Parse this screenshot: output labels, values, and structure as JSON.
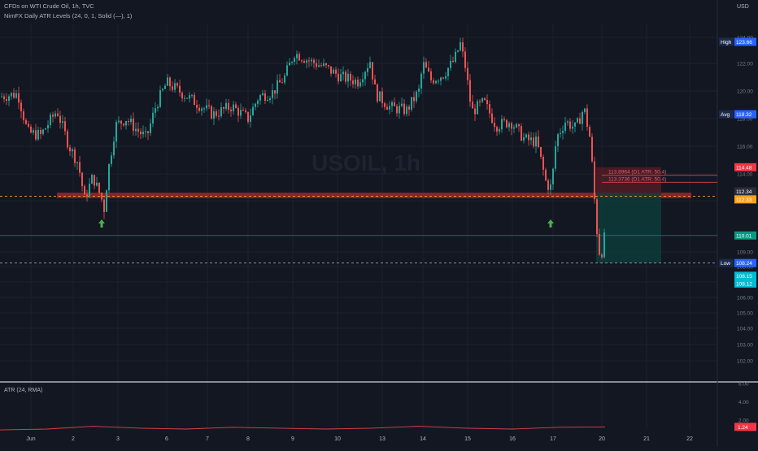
{
  "header": {
    "title": "CFDs on WTI Crude Oil, 1h, TVC",
    "indicator": "NimFX Daily ATR Levels (24, 0, 1, Solid (—), 1)",
    "currency": "USD",
    "watermark": "USOIL, 1h"
  },
  "subpane": {
    "label": "ATR (24, RMA)"
  },
  "chart_data": {
    "type": "candlestick",
    "title": "CFDs on WTI Crude Oil, 1h, TVC",
    "ylim": [
      101,
      125
    ],
    "y_ticks": [
      102,
      103,
      104,
      105,
      106,
      107,
      108,
      109,
      110,
      112,
      114,
      116,
      118,
      120,
      122,
      124
    ],
    "x_ticks": [
      "Jun",
      "2",
      "3",
      "6",
      "7",
      "8",
      "9",
      "10",
      "13",
      "14",
      "15",
      "16",
      "17",
      "20",
      "21",
      "22"
    ],
    "price_path": [
      {
        "x": 0,
        "y": 119.6
      },
      {
        "x": 22,
        "y": 119.8
      },
      {
        "x": 34,
        "y": 117.0
      },
      {
        "x": 50,
        "y": 116.8
      },
      {
        "x": 70,
        "y": 118.6
      },
      {
        "x": 85,
        "y": 116.0
      },
      {
        "x": 96,
        "y": 114.8
      },
      {
        "x": 104,
        "y": 112.1
      },
      {
        "x": 114,
        "y": 113.8
      },
      {
        "x": 122,
        "y": 112.6
      },
      {
        "x": 128,
        "y": 111.6
      },
      {
        "x": 134,
        "y": 114.6
      },
      {
        "x": 142,
        "y": 117.5
      },
      {
        "x": 155,
        "y": 118.0
      },
      {
        "x": 168,
        "y": 117.2
      },
      {
        "x": 180,
        "y": 116.6
      },
      {
        "x": 192,
        "y": 119.0
      },
      {
        "x": 205,
        "y": 120.6
      },
      {
        "x": 220,
        "y": 120.0
      },
      {
        "x": 240,
        "y": 119.2
      },
      {
        "x": 262,
        "y": 118.3
      },
      {
        "x": 285,
        "y": 118.9
      },
      {
        "x": 305,
        "y": 118.0
      },
      {
        "x": 318,
        "y": 119.6
      },
      {
        "x": 335,
        "y": 119.9
      },
      {
        "x": 350,
        "y": 121.0
      },
      {
        "x": 362,
        "y": 122.8
      },
      {
        "x": 380,
        "y": 122.2
      },
      {
        "x": 400,
        "y": 121.7
      },
      {
        "x": 420,
        "y": 121.0
      },
      {
        "x": 440,
        "y": 120.7
      },
      {
        "x": 455,
        "y": 122.2
      },
      {
        "x": 462,
        "y": 119.8
      },
      {
        "x": 480,
        "y": 118.8
      },
      {
        "x": 500,
        "y": 118.6
      },
      {
        "x": 515,
        "y": 120.0
      },
      {
        "x": 520,
        "y": 122.0
      },
      {
        "x": 530,
        "y": 120.8
      },
      {
        "x": 545,
        "y": 121.2
      },
      {
        "x": 558,
        "y": 122.2
      },
      {
        "x": 566,
        "y": 123.5
      },
      {
        "x": 572,
        "y": 121.8
      },
      {
        "x": 580,
        "y": 118.5
      },
      {
        "x": 595,
        "y": 119.2
      },
      {
        "x": 610,
        "y": 117.5
      },
      {
        "x": 628,
        "y": 117.8
      },
      {
        "x": 645,
        "y": 116.5
      },
      {
        "x": 660,
        "y": 116.3
      },
      {
        "x": 672,
        "y": 113.2
      },
      {
        "x": 678,
        "y": 113.0
      },
      {
        "x": 684,
        "y": 116.6
      },
      {
        "x": 695,
        "y": 117.8
      },
      {
        "x": 708,
        "y": 117.3
      },
      {
        "x": 718,
        "y": 118.8
      },
      {
        "x": 726,
        "y": 116.4
      },
      {
        "x": 732,
        "y": 111.2
      },
      {
        "x": 738,
        "y": 108.6
      },
      {
        "x": 744,
        "y": 110.0
      }
    ],
    "last_price": 110.01,
    "session_high": 123.66,
    "session_low": 108.24,
    "average": 118.32,
    "atr_levels": [
      {
        "value": 113.8964,
        "label": "113.8964 (D1 ATR: 50.4)"
      },
      {
        "value": 113.3736,
        "label": "113.3736 (D1 ATR: 50.4)"
      }
    ],
    "support_zone": [
      112.2,
      112.6
    ],
    "position_zone": {
      "top": 112.6,
      "bottom": 108.24
    },
    "arrows_up_at_x": [
      125,
      677
    ],
    "atr_series": [
      0.9,
      1.0,
      1.3,
      1.1,
      1.0,
      1.2,
      1.1,
      1.0,
      1.1,
      1.3,
      1.1,
      1.0,
      1.2,
      1.24
    ],
    "atr_ylim": [
      1,
      6
    ],
    "atr_ticks": [
      2,
      4,
      6
    ]
  },
  "price_axis": {
    "labels": [
      {
        "text": "High",
        "value": "123.66",
        "color": "#2962ff"
      },
      {
        "text": "Avg",
        "value": "118.32",
        "color": "#2962ff"
      },
      {
        "text": "",
        "value": "114.48",
        "color": "#f23645"
      },
      {
        "text": "",
        "value": "112.34",
        "color": "#2a2e39"
      },
      {
        "text": "",
        "value": "112.33",
        "color": "#f7a21b"
      },
      {
        "text": "",
        "value": "110.01",
        "color": "#089981"
      },
      {
        "text": "Low",
        "value": "108.24",
        "color": "#2962ff"
      },
      {
        "text": "",
        "value": "108.15",
        "color": "#00bcd4"
      },
      {
        "text": "",
        "value": "108.12",
        "color": "#00bcd4"
      }
    ],
    "atr_last": "1.24"
  },
  "colors": {
    "background": "#131722",
    "up": "#26a69a",
    "down": "#ef5350",
    "grid": "#1e222d",
    "support": "#b22833",
    "atr_line": "#e04050"
  }
}
